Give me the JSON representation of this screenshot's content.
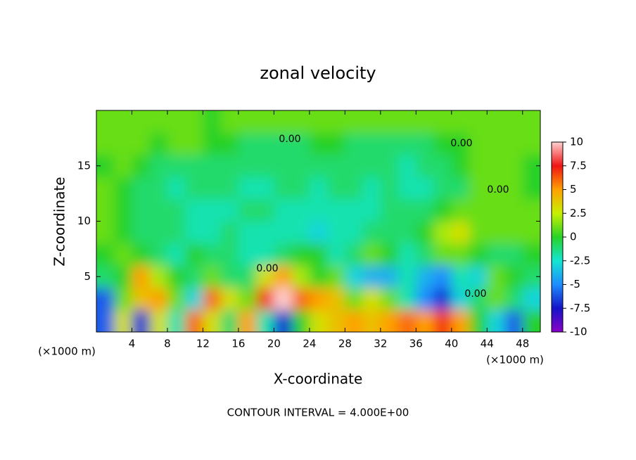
{
  "chart_data": {
    "type": "heatmap",
    "title": "zonal velocity",
    "x_label": "X-coordinate",
    "y_label": "Z-coordinate",
    "x_unit": "(×1000 m)",
    "footer": "CONTOUR INTERVAL = 4.000E+00",
    "contour_labels": [
      "0.00",
      "0.00",
      "0.00",
      "0.00",
      "0.00"
    ],
    "xlim": [
      0,
      50
    ],
    "ylim": [
      0,
      20
    ],
    "xticks": [
      4,
      8,
      12,
      16,
      20,
      24,
      28,
      32,
      36,
      40,
      44,
      48
    ],
    "yticks": [
      5,
      10,
      15
    ],
    "x": [
      1,
      3,
      5,
      7,
      9,
      11,
      13,
      15,
      17,
      19,
      21,
      23,
      25,
      27,
      29,
      31,
      33,
      35,
      37,
      39,
      41,
      43,
      45,
      47,
      49
    ],
    "y": [
      1,
      3,
      5,
      7,
      9,
      11,
      13,
      15,
      17,
      19
    ],
    "z": [
      [
        -6,
        3,
        -7,
        3,
        -2,
        6,
        3,
        -1,
        5,
        -2,
        -7,
        0,
        3,
        4,
        5,
        4,
        5,
        6,
        5,
        7,
        5,
        0,
        -3,
        -6,
        0
      ],
      [
        -6,
        1,
        4,
        5,
        1,
        -3,
        6,
        3,
        1,
        7,
        10,
        6,
        5,
        4,
        1,
        3,
        1,
        -2,
        -5,
        -7,
        -3,
        -1,
        1,
        -1,
        -3
      ],
      [
        -1,
        0,
        5,
        2,
        0,
        -1,
        1,
        -1,
        -1,
        3,
        5,
        2,
        0,
        1,
        -3,
        -4,
        -4,
        -2,
        -4,
        -5,
        -2,
        -3,
        1,
        0,
        -1
      ],
      [
        0,
        1,
        0,
        -1,
        -2,
        0,
        -1,
        -1,
        -2,
        -2,
        -1,
        0,
        0,
        -2,
        -1,
        1,
        0,
        -2,
        -1,
        1,
        1,
        0,
        -1,
        -1,
        0
      ],
      [
        1,
        0,
        -1,
        -1,
        -1,
        -2,
        -2,
        -1,
        -2,
        -2,
        -2,
        -2,
        -3,
        -2,
        -2,
        -1,
        -1,
        -1,
        0,
        2,
        3,
        1,
        1,
        1,
        1
      ],
      [
        1,
        0,
        -1,
        -1,
        -1,
        -2,
        -2,
        -2,
        -1,
        -1,
        -2,
        -2,
        -2,
        -2,
        -2,
        -2,
        -1,
        -1,
        -1,
        0,
        1,
        1,
        1,
        1,
        1
      ],
      [
        1,
        0,
        -1,
        -1,
        -2,
        -1,
        -1,
        -1,
        -2,
        -2,
        -1,
        -1,
        -2,
        -1,
        -1,
        -2,
        -1,
        -2,
        -2,
        -1,
        -1,
        1,
        1,
        1,
        0
      ],
      [
        0,
        1,
        0,
        -1,
        -1,
        -1,
        -1,
        -1,
        -1,
        -1,
        -1,
        -1,
        -1,
        -1,
        -1,
        -1,
        -1,
        -2,
        -1,
        -1,
        0,
        1,
        1,
        1,
        0
      ],
      [
        1,
        1,
        1,
        0,
        1,
        1,
        0,
        0,
        -1,
        -1,
        -1,
        -1,
        0,
        0,
        -1,
        -1,
        -1,
        -1,
        -1,
        0,
        0,
        1,
        1,
        1,
        1
      ],
      [
        1,
        1,
        1,
        1,
        1,
        1,
        0,
        1,
        1,
        1,
        1,
        1,
        1,
        1,
        1,
        1,
        1,
        1,
        1,
        1,
        1,
        1,
        1,
        1,
        1
      ]
    ],
    "colorbar": {
      "lim": [
        -10,
        10
      ],
      "ticks": [
        10,
        7.5,
        5,
        2.5,
        0,
        -2.5,
        -5,
        -7.5,
        -10
      ],
      "colors": [
        "#8a00c8",
        "#1414c8",
        "#1e8cff",
        "#14e6d2",
        "#28d228",
        "#c8f000",
        "#ffa000",
        "#f01414",
        "#ffd0d0"
      ]
    }
  }
}
